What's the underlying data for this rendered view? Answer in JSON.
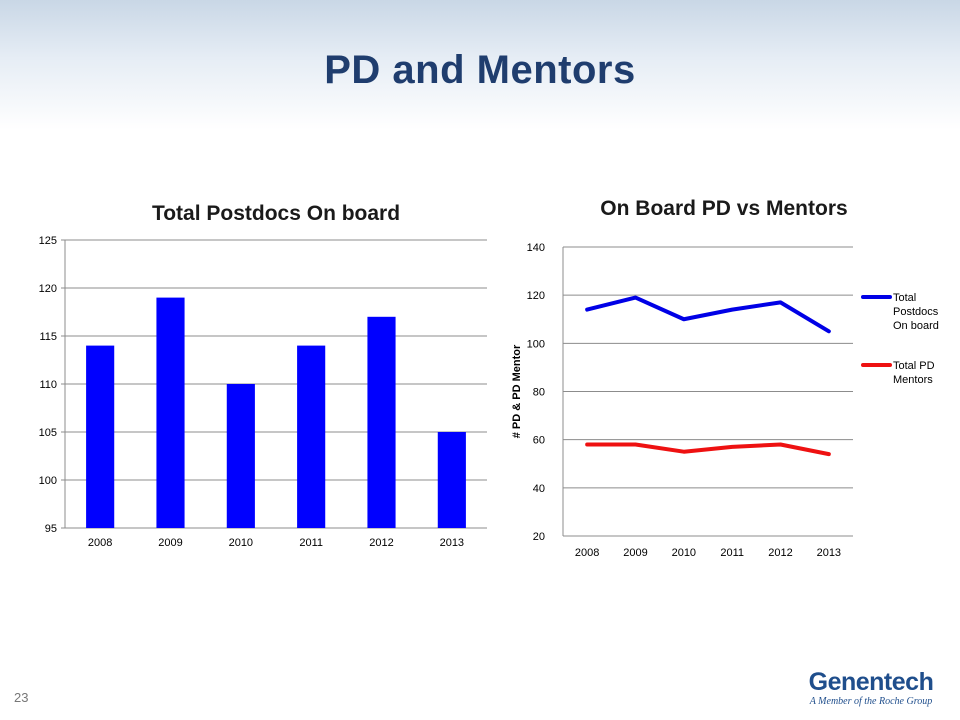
{
  "slide": {
    "title": "PD and Mentors",
    "page_number": "23",
    "logo_name": "Genentech",
    "logo_tagline": "A Member of the Roche Group"
  },
  "chart_data": [
    {
      "type": "bar",
      "title": "Total Postdocs On board",
      "categories": [
        "2008",
        "2009",
        "2010",
        "2011",
        "2012",
        "2013"
      ],
      "values": [
        114,
        119,
        110,
        114,
        117,
        105
      ],
      "ylim": [
        95,
        125
      ],
      "yticks": [
        95,
        100,
        105,
        110,
        115,
        120,
        125
      ],
      "xlabel": "",
      "ylabel": "",
      "grid": true,
      "bar_color": "#0000ff"
    },
    {
      "type": "line",
      "title": "On Board PD vs Mentors",
      "x": [
        "2008",
        "2009",
        "2010",
        "2011",
        "2012",
        "2013"
      ],
      "ylabel": "# PD & PD Mentor",
      "ylim": [
        20,
        140
      ],
      "yticks": [
        20,
        40,
        60,
        80,
        100,
        120,
        140
      ],
      "grid": true,
      "legend_position": "right",
      "series": [
        {
          "name": "Total Postdocs On board",
          "legend_lines": [
            "Total",
            "Postdocs",
            "On board"
          ],
          "values": [
            114,
            119,
            110,
            114,
            117,
            105
          ],
          "color": "#0000e6"
        },
        {
          "name": "Total PD Mentors",
          "legend_lines": [
            "Total PD",
            "Mentors"
          ],
          "values": [
            58,
            58,
            55,
            57,
            58,
            54
          ],
          "color": "#ee1111"
        }
      ]
    }
  ]
}
